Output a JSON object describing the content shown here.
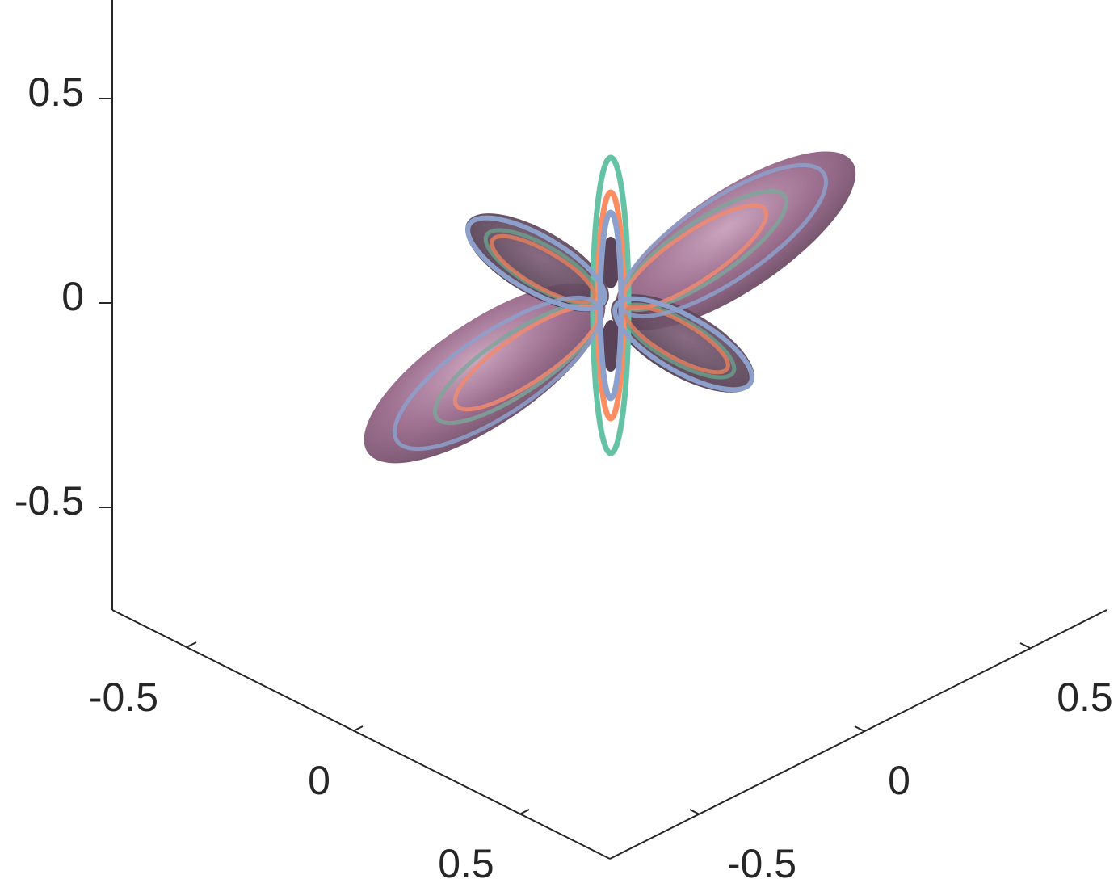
{
  "chart_data": {
    "type": "surface3d",
    "title": "",
    "xlabel": "",
    "ylabel": "",
    "zlabel": "",
    "grid": false,
    "axes": {
      "z": {
        "ticks": [
          0.5,
          0,
          -0.5
        ],
        "tick_labels": [
          "0.5",
          "0",
          "-0.5"
        ]
      },
      "left": {
        "ticks": [
          -0.5,
          0,
          0.5
        ],
        "tick_labels": [
          "-0.5",
          "0",
          "0.5"
        ]
      },
      "right": {
        "ticks": [
          0.5,
          0,
          -0.5
        ],
        "tick_labels": [
          "0.5",
          "0",
          "-0.5"
        ]
      }
    },
    "surface": {
      "name": "lobed-surface",
      "color": "#8a5a7a",
      "lobes": [
        {
          "name": "lobe-upper-right",
          "direction": "upper-right",
          "length": 0.45
        },
        {
          "name": "lobe-lower-left",
          "direction": "lower-left",
          "length": 0.45
        },
        {
          "name": "lobe-upper-left",
          "direction": "upper-left",
          "length": 0.25
        },
        {
          "name": "lobe-lower-right",
          "direction": "lower-right",
          "length": 0.25
        },
        {
          "name": "lobe-up",
          "direction": "up",
          "length": 0.12
        },
        {
          "name": "lobe-down",
          "direction": "down",
          "length": 0.12
        }
      ]
    },
    "curves": [
      {
        "name": "curve-green",
        "color": "#66c2a5"
      },
      {
        "name": "curve-orange",
        "color": "#fc8d62"
      },
      {
        "name": "curve-blue",
        "color": "#8da0cb"
      }
    ]
  }
}
